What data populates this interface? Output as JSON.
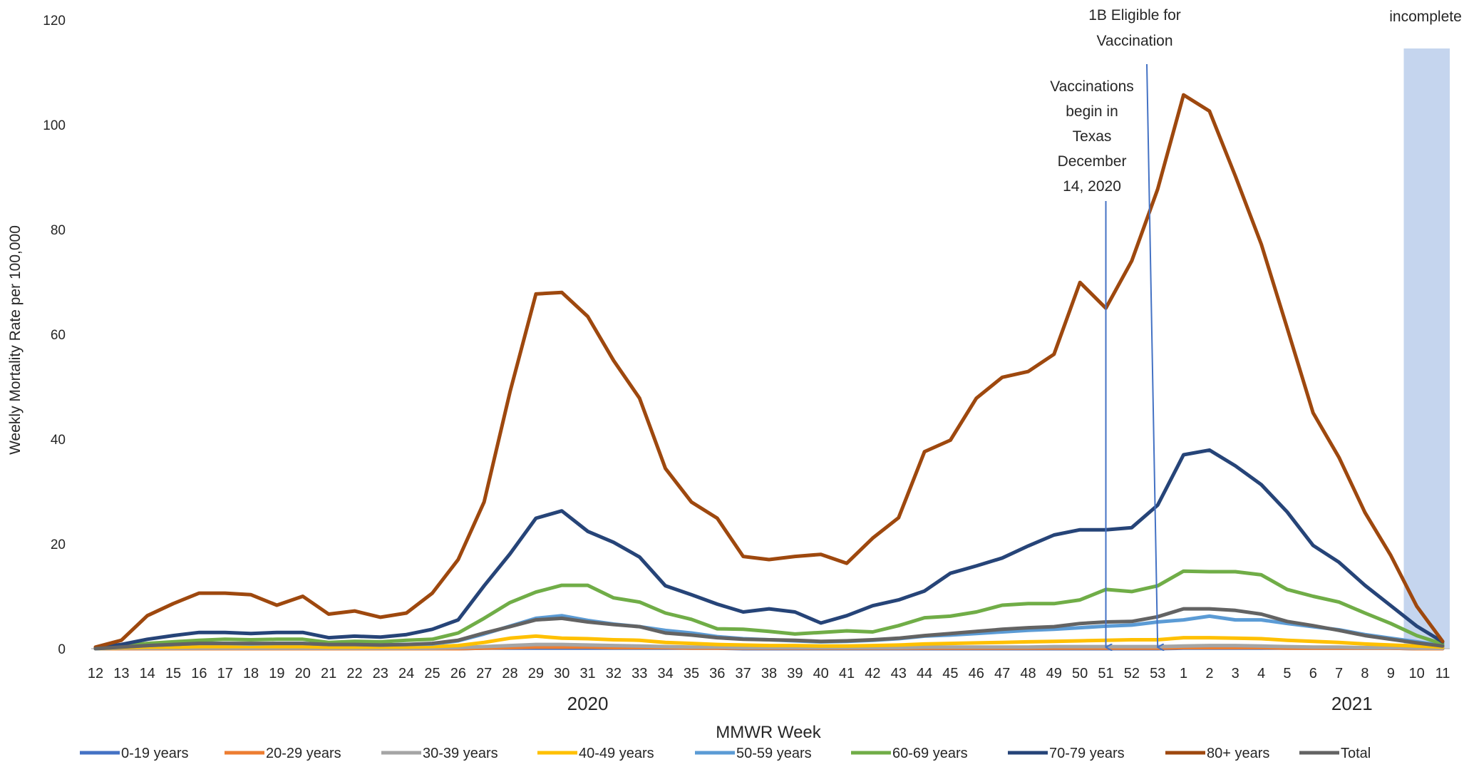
{
  "chart_data": {
    "type": "line",
    "title": "",
    "ylabel": "Weekly Mortality Rate per 100,000",
    "xlabel": "MMWR Week",
    "ylim": [
      0,
      120
    ],
    "yticks": [
      "0",
      "20",
      "40",
      "60",
      "80",
      "100",
      "120"
    ],
    "categories": [
      "12",
      "13",
      "14",
      "15",
      "16",
      "17",
      "18",
      "19",
      "20",
      "21",
      "22",
      "23",
      "24",
      "25",
      "26",
      "27",
      "28",
      "29",
      "30",
      "31",
      "32",
      "33",
      "34",
      "35",
      "36",
      "37",
      "38",
      "39",
      "40",
      "41",
      "42",
      "43",
      "44",
      "45",
      "46",
      "47",
      "48",
      "49",
      "50",
      "51",
      "52",
      "53",
      "1",
      "2",
      "3",
      "4",
      "5",
      "6",
      "7",
      "8",
      "9",
      "10",
      "11"
    ],
    "year_labels": [
      {
        "text": "2020",
        "at_category_index": 19
      },
      {
        "text": "2021",
        "at_category_index": 48.5
      }
    ],
    "grid": false,
    "legend_position": "bottom",
    "series": [
      {
        "name": "0-19 years",
        "color": "#4472C4",
        "values": [
          0,
          0,
          0,
          0,
          0,
          0,
          0,
          0,
          0,
          0,
          0,
          0,
          0,
          0,
          0,
          0.1,
          0.1,
          0.1,
          0.1,
          0.1,
          0.1,
          0.1,
          0.1,
          0.1,
          0.1,
          0,
          0,
          0,
          0,
          0,
          0,
          0,
          0,
          0,
          0,
          0,
          0,
          0,
          0,
          0,
          0,
          0,
          0.1,
          0.1,
          0.1,
          0.1,
          0.1,
          0.1,
          0.1,
          0.1,
          0.1,
          0,
          0
        ]
      },
      {
        "name": "20-29 years",
        "color": "#ED7D31",
        "values": [
          0,
          0,
          0,
          0,
          0,
          0,
          0,
          0,
          0,
          0,
          0,
          0,
          0,
          0,
          0,
          0.1,
          0.2,
          0.3,
          0.3,
          0.3,
          0.2,
          0.2,
          0.2,
          0.1,
          0.1,
          0.1,
          0.1,
          0.1,
          0.1,
          0.1,
          0.1,
          0.1,
          0.1,
          0.1,
          0.1,
          0.1,
          0.1,
          0.1,
          0.1,
          0.1,
          0.1,
          0.1,
          0.2,
          0.2,
          0.2,
          0.2,
          0.1,
          0.1,
          0.1,
          0.1,
          0.1,
          0,
          0
        ]
      },
      {
        "name": "30-39 years",
        "color": "#A5A5A5",
        "values": [
          0,
          0.1,
          0.1,
          0.1,
          0.1,
          0.1,
          0.1,
          0.1,
          0.1,
          0.1,
          0.1,
          0.1,
          0.1,
          0.1,
          0.2,
          0.4,
          0.6,
          0.8,
          0.8,
          0.7,
          0.6,
          0.5,
          0.4,
          0.3,
          0.3,
          0.2,
          0.2,
          0.2,
          0.2,
          0.2,
          0.2,
          0.2,
          0.3,
          0.3,
          0.3,
          0.3,
          0.3,
          0.4,
          0.4,
          0.4,
          0.4,
          0.4,
          0.5,
          0.6,
          0.6,
          0.5,
          0.4,
          0.3,
          0.3,
          0.2,
          0.2,
          0.1,
          0.1
        ]
      },
      {
        "name": "40-49 years",
        "color": "#FFC000",
        "values": [
          0,
          0.2,
          0.3,
          0.3,
          0.4,
          0.4,
          0.4,
          0.4,
          0.4,
          0.3,
          0.3,
          0.3,
          0.3,
          0.4,
          0.6,
          1.2,
          2,
          2.4,
          2,
          1.9,
          1.7,
          1.6,
          1.2,
          1,
          0.8,
          0.7,
          0.6,
          0.6,
          0.5,
          0.5,
          0.6,
          0.7,
          0.9,
          1,
          1.1,
          1.2,
          1.3,
          1.4,
          1.5,
          1.6,
          1.7,
          1.7,
          2.1,
          2.1,
          2,
          1.9,
          1.6,
          1.4,
          1.2,
          0.9,
          0.7,
          0.5,
          0.3
        ]
      },
      {
        "name": "50-59 years",
        "color": "#5B9BD5",
        "values": [
          0,
          0.3,
          0.6,
          0.8,
          1,
          1,
          0.9,
          1,
          1,
          0.8,
          0.8,
          0.7,
          0.8,
          0.9,
          1.5,
          2.8,
          4.3,
          5.8,
          6.3,
          5.4,
          4.7,
          4.2,
          3.5,
          3,
          2.3,
          1.9,
          1.7,
          1.5,
          1.3,
          1.4,
          1.6,
          1.9,
          2.4,
          2.6,
          2.9,
          3.2,
          3.5,
          3.7,
          4,
          4.3,
          4.5,
          5.1,
          5.5,
          6.2,
          5.5,
          5.5,
          4.8,
          4.2,
          3.6,
          2.7,
          2,
          1.3,
          0.6
        ]
      },
      {
        "name": "60-69 years",
        "color": "#70AD47",
        "values": [
          0.1,
          0.5,
          1,
          1.3,
          1.6,
          1.8,
          1.7,
          1.8,
          1.8,
          1.2,
          1.4,
          1.3,
          1.6,
          1.8,
          3,
          5.8,
          8.8,
          10.8,
          12.1,
          12.1,
          9.7,
          8.9,
          6.8,
          5.6,
          3.8,
          3.7,
          3.3,
          2.8,
          3.1,
          3.4,
          3.2,
          4.4,
          5.9,
          6.2,
          7,
          8.3,
          8.6,
          8.6,
          9.3,
          11.3,
          10.9,
          12,
          14.8,
          14.7,
          14.7,
          14.1,
          11.3,
          10,
          8.9,
          6.8,
          4.8,
          2.5,
          0.9
        ]
      },
      {
        "name": "70-79 years",
        "color": "#264478",
        "values": [
          0.2,
          0.8,
          1.8,
          2.5,
          3.1,
          3.1,
          2.9,
          3.1,
          3.1,
          2.1,
          2.4,
          2.2,
          2.7,
          3.7,
          5.5,
          12,
          18.1,
          24.9,
          26.3,
          22.4,
          20.3,
          17.5,
          12,
          10.3,
          8.5,
          7,
          7.6,
          7,
          4.9,
          6.3,
          8.2,
          9.3,
          11,
          14.4,
          15.8,
          17.3,
          19.6,
          21.7,
          22.7,
          22.7,
          23.1,
          27.4,
          37,
          37.9,
          34.9,
          31.3,
          26.1,
          19.7,
          16.5,
          12.1,
          8.2,
          4.3,
          1.3
        ]
      },
      {
        "name": "80+ years",
        "color": "#9E480E",
        "values": [
          0.3,
          1.6,
          6.3,
          8.6,
          10.6,
          10.6,
          10.3,
          8.3,
          10,
          6.6,
          7.2,
          6,
          6.8,
          10.6,
          17,
          28,
          49,
          67.7,
          68,
          63.4,
          55,
          47.8,
          34.4,
          28,
          24.9,
          17.6,
          17,
          17.6,
          18,
          16.3,
          21.1,
          25,
          37.6,
          39.8,
          47.8,
          51.8,
          52.9,
          56.2,
          69.9,
          65,
          74,
          87.7,
          105.7,
          102.6,
          90.2,
          77.2,
          61.2,
          45,
          36.5,
          26,
          17.8,
          8.1,
          1.4
        ]
      },
      {
        "name": "Total",
        "color": "#636363",
        "values": [
          0,
          0.3,
          0.6,
          0.8,
          1,
          1,
          1,
          1,
          1,
          0.8,
          0.8,
          0.7,
          0.8,
          1,
          1.6,
          3,
          4.2,
          5.5,
          5.8,
          5.1,
          4.6,
          4.2,
          3,
          2.6,
          2.1,
          1.8,
          1.7,
          1.6,
          1.4,
          1.5,
          1.7,
          2,
          2.5,
          2.9,
          3.3,
          3.7,
          4,
          4.2,
          4.8,
          5.1,
          5.2,
          6.1,
          7.6,
          7.6,
          7.3,
          6.6,
          5.2,
          4.4,
          3.5,
          2.5,
          1.8,
          1.1,
          0.5
        ]
      }
    ],
    "annotations": [
      {
        "id": "vaccinations",
        "lines": [
          "Vaccinations",
          "begin in",
          "Texas",
          "December",
          "14, 2020"
        ],
        "points_to_category_index": 39
      },
      {
        "id": "eligible",
        "lines": [
          "1B Eligible for",
          "Vaccination"
        ],
        "points_to_category_index": 41
      },
      {
        "id": "incomplete",
        "lines": [
          "incomplete"
        ],
        "shaded_from_category_index": 51,
        "shaded_color": "#C5D5EE"
      }
    ]
  }
}
